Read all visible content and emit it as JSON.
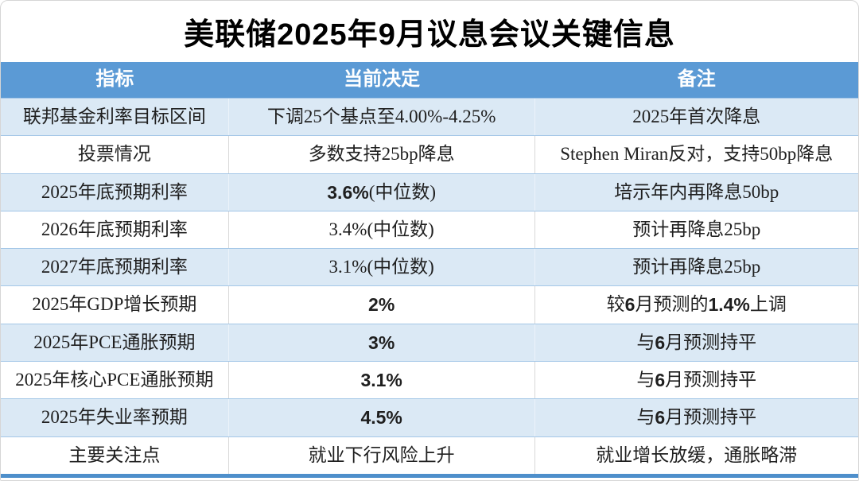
{
  "title": "美联储2025年9月议息会议关键信息",
  "colors": {
    "header_bg": "#5b9ad5",
    "alt_row_bg": "#dbe9f5",
    "bottom_bar": "#4e8fcb",
    "header_text": "#ffffff",
    "body_text": "#1f1f1f"
  },
  "table": {
    "headers": [
      "指标",
      "当前决定",
      "备注"
    ],
    "rows": [
      {
        "indicator": [
          {
            "t": "联邦基金利率目标区间"
          }
        ],
        "decision": [
          {
            "t": "下调25个基点至4.00%-4.25%"
          }
        ],
        "note": [
          {
            "t": "2025年首次降息"
          }
        ]
      },
      {
        "indicator": [
          {
            "t": "投票情况"
          }
        ],
        "decision": [
          {
            "t": "多数支持25bp降息"
          }
        ],
        "note": [
          {
            "t": "Stephen Miran反对，支持50bp降息"
          }
        ]
      },
      {
        "indicator": [
          {
            "t": "2025年底预期利率"
          }
        ],
        "decision": [
          {
            "t": "3.6%",
            "b": true
          },
          {
            "t": "(中位数)"
          }
        ],
        "note": [
          {
            "t": "培示年内再降息50bp"
          }
        ]
      },
      {
        "indicator": [
          {
            "t": "2026年底预期利率"
          }
        ],
        "decision": [
          {
            "t": "3.4%(中位数)"
          }
        ],
        "note": [
          {
            "t": "预计再降息25bp"
          }
        ]
      },
      {
        "indicator": [
          {
            "t": "2027年底预期利率"
          }
        ],
        "decision": [
          {
            "t": "3.1%(中位数)"
          }
        ],
        "note": [
          {
            "t": "预计再降息25bp"
          }
        ]
      },
      {
        "indicator": [
          {
            "t": "2025年GDP增长预期"
          }
        ],
        "decision": [
          {
            "t": "2%",
            "b": true
          }
        ],
        "note": [
          {
            "t": "较"
          },
          {
            "t": "6",
            "b": true
          },
          {
            "t": "月预测的"
          },
          {
            "t": "1.4%",
            "b": true
          },
          {
            "t": "上调"
          }
        ]
      },
      {
        "indicator": [
          {
            "t": "2025年PCE通胀预期"
          }
        ],
        "decision": [
          {
            "t": "3%",
            "b": true
          }
        ],
        "note": [
          {
            "t": "与"
          },
          {
            "t": "6",
            "b": true
          },
          {
            "t": "月预测持平"
          }
        ]
      },
      {
        "indicator": [
          {
            "t": "2025年核心PCE通胀预期"
          }
        ],
        "decision": [
          {
            "t": "3.1%",
            "b": true
          }
        ],
        "note": [
          {
            "t": "与"
          },
          {
            "t": "6",
            "b": true
          },
          {
            "t": "月预测持平"
          }
        ]
      },
      {
        "indicator": [
          {
            "t": "2025年失业率预期"
          }
        ],
        "decision": [
          {
            "t": "4.5%",
            "b": true
          }
        ],
        "note": [
          {
            "t": "与"
          },
          {
            "t": "6",
            "b": true
          },
          {
            "t": "月预测持平"
          }
        ]
      },
      {
        "indicator": [
          {
            "t": "主要关注点"
          }
        ],
        "decision": [
          {
            "t": "就业下行风险上升"
          }
        ],
        "note": [
          {
            "t": "就业增长放缓，通胀略滞"
          }
        ]
      }
    ]
  },
  "chart_data": {
    "type": "table",
    "title": "美联储2025年9月议息会议关键信息",
    "columns": [
      "指标",
      "当前决定",
      "备注"
    ],
    "rows": [
      [
        "联邦基金利率目标区间",
        "下调25个基点至4.00%-4.25%",
        "2025年首次降息"
      ],
      [
        "投票情况",
        "多数支持25bp降息",
        "Stephen Miran反对，支持50bp降息"
      ],
      [
        "2025年底预期利率",
        "3.6%(中位数)",
        "培示年内再降息50bp"
      ],
      [
        "2026年底预期利率",
        "3.4%(中位数)",
        "预计再降息25bp"
      ],
      [
        "2027年底预期利率",
        "3.1%(中位数)",
        "预计再降息25bp"
      ],
      [
        "2025年GDP增长预期",
        "2%",
        "较6月预测的1.4%上调"
      ],
      [
        "2025年PCE通胀预期",
        "3%",
        "与6月预测持平"
      ],
      [
        "2025年核心PCE通胀预期",
        "3.1%",
        "与6月预测持平"
      ],
      [
        "2025年失业率预期",
        "4.5%",
        "与6月预测持平"
      ],
      [
        "主要关注点",
        "就业下行风险上升",
        "就业增长放缓，通胀略滞"
      ]
    ],
    "layout": {
      "alternating_row_fill": [
        "#dbe9f5",
        "#ffffff"
      ],
      "header_fill": "#5b9ad5",
      "bold_cells": [
        "3.6%",
        "2%",
        "3%",
        "3.1%",
        "4.5%",
        "1.4%"
      ]
    }
  }
}
